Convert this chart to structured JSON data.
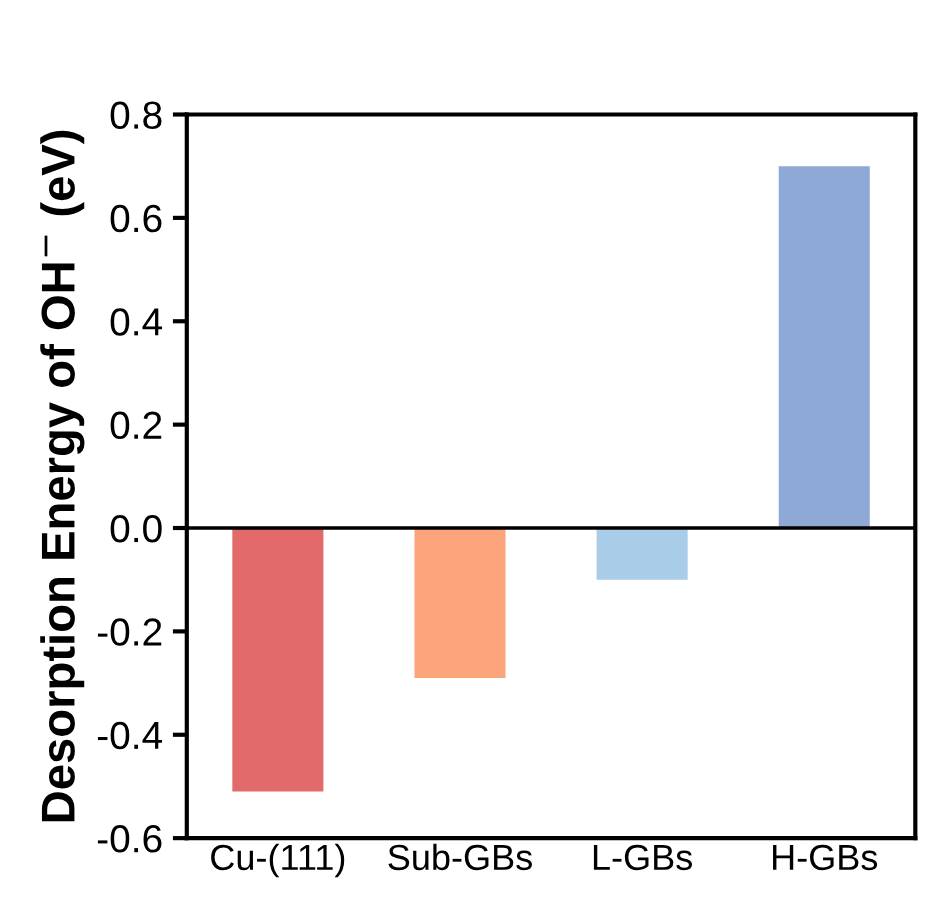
{
  "chart_data": {
    "type": "bar",
    "ylabel": "Desorption Energy of OH$^{−}$ (eV)",
    "categories": [
      "Cu-(111)",
      "Sub-GBs",
      "L-GBs",
      "H-GBs"
    ],
    "values": [
      -0.51,
      -0.29,
      -0.1,
      0.7
    ],
    "colors": [
      "#e26a6a",
      "#fca57c",
      "#a9cde8",
      "#8ea9d6"
    ],
    "ylim": [
      -0.6,
      0.8
    ],
    "yticks": [
      -0.6,
      -0.4,
      -0.2,
      {
        "value": 0,
        "label": "0.0"
      },
      0.2,
      0.4,
      0.6,
      0.8
    ],
    "ref_lines": [
      {
        "axis": "y",
        "value": 0,
        "color": "#000000"
      }
    ],
    "grid": false,
    "legend": false
  }
}
